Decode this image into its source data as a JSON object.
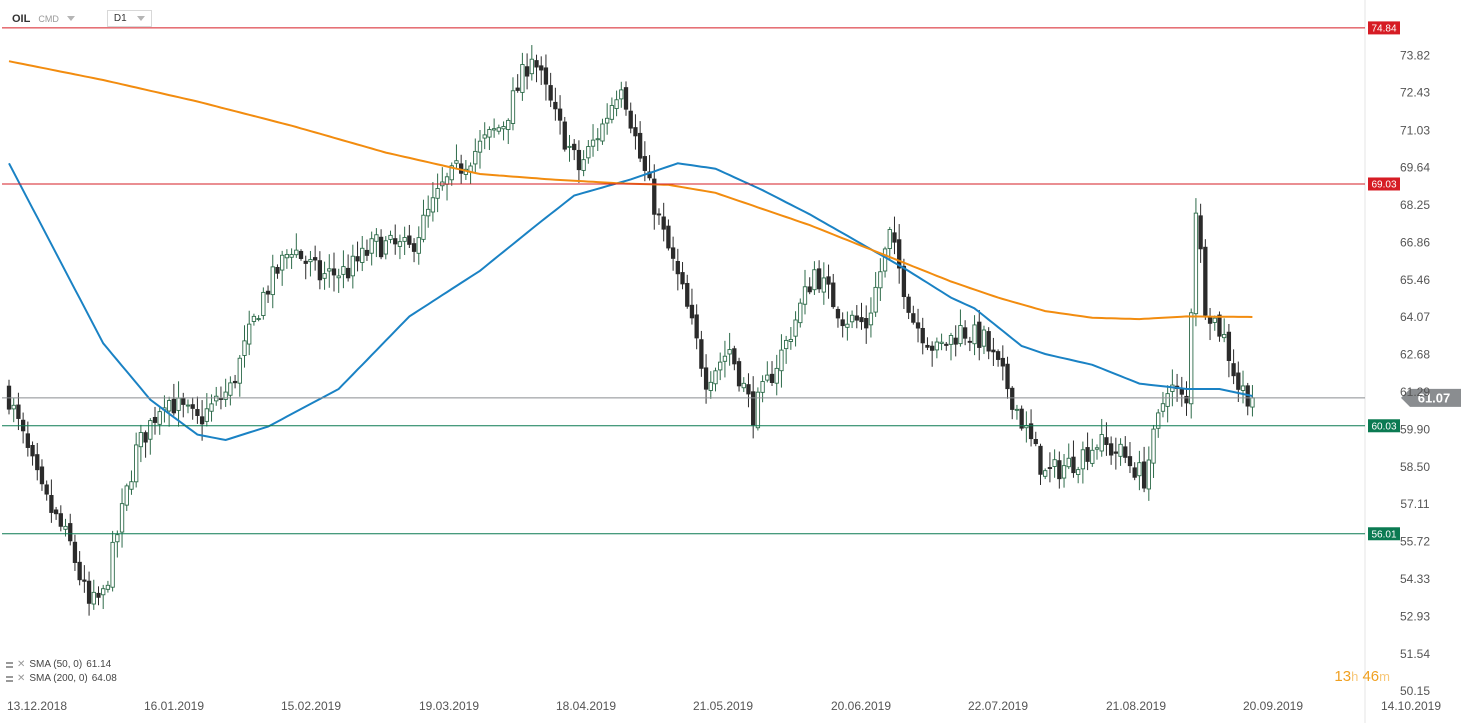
{
  "instrument": {
    "symbol": "OIL",
    "type": "CMD",
    "timeframe": "D1"
  },
  "countdown": {
    "hours": "13",
    "h_unit": "h",
    "minutes": "46",
    "m_unit": "m"
  },
  "colors": {
    "sma50": "#1a82c4",
    "sma200": "#f28c0f",
    "bull": "#2e6b4a",
    "bear": "#2b2b2b",
    "resistance": "#d61c24",
    "support": "#0b7a52",
    "price": "#8a8d90"
  },
  "legend": [
    {
      "label": "SMA (50, 0)",
      "value": "61.14"
    },
    {
      "label": "SMA (200, 0)",
      "value": "64.08"
    }
  ],
  "chart_data": {
    "type": "candlestick",
    "y_axis_ticks": [
      "73.82",
      "72.43",
      "71.03",
      "69.64",
      "68.25",
      "66.86",
      "65.46",
      "64.07",
      "62.68",
      "61.29",
      "59.90",
      "58.50",
      "57.11",
      "55.72",
      "54.33",
      "52.93",
      "51.54",
      "50.15"
    ],
    "x_axis_ticks": [
      "13.12.2018",
      "16.01.2019",
      "15.02.2019",
      "19.03.2019",
      "18.04.2019",
      "21.05.2019",
      "20.06.2019",
      "22.07.2019",
      "21.08.2019",
      "20.09.2019",
      "14.10.2019"
    ],
    "ylim": [
      50.15,
      75.2
    ],
    "horizontal_levels": [
      {
        "label": "74.84",
        "value": 74.84,
        "kind": "resistance"
      },
      {
        "label": "69.03",
        "value": 69.03,
        "kind": "resistance"
      },
      {
        "label": "60.03",
        "value": 60.03,
        "kind": "support"
      },
      {
        "label": "56.01",
        "value": 56.01,
        "kind": "support"
      }
    ],
    "current_price": {
      "label": "61.07",
      "value": 61.07
    },
    "close_anchors": [
      [
        0,
        61.1
      ],
      [
        7,
        57.5
      ],
      [
        13,
        55.6
      ],
      [
        17,
        53.3
      ],
      [
        20,
        53.7
      ],
      [
        27,
        59.1
      ],
      [
        33,
        61.1
      ],
      [
        40,
        60.2
      ],
      [
        47,
        61.4
      ],
      [
        54,
        64.9
      ],
      [
        60,
        66.7
      ],
      [
        66,
        65.6
      ],
      [
        72,
        65.8
      ],
      [
        78,
        66.8
      ],
      [
        85,
        66.6
      ],
      [
        92,
        68.9
      ],
      [
        98,
        70.1
      ],
      [
        105,
        71.3
      ],
      [
        111,
        73.9
      ],
      [
        116,
        71.5
      ],
      [
        121,
        69.6
      ],
      [
        126,
        71.2
      ],
      [
        130,
        72.9
      ],
      [
        134,
        70.0
      ],
      [
        139,
        67.1
      ],
      [
        143,
        65.0
      ],
      [
        148,
        61.8
      ],
      [
        153,
        62.9
      ],
      [
        158,
        60.5
      ],
      [
        165,
        63.1
      ],
      [
        171,
        65.8
      ],
      [
        177,
        64.1
      ],
      [
        182,
        63.8
      ],
      [
        187,
        67.1
      ],
      [
        192,
        64.0
      ],
      [
        197,
        62.8
      ],
      [
        202,
        63.6
      ],
      [
        207,
        63.2
      ],
      [
        212,
        61.5
      ],
      [
        216,
        59.8
      ],
      [
        220,
        58.2
      ],
      [
        226,
        58.7
      ],
      [
        231,
        59.4
      ],
      [
        236,
        59.0
      ],
      [
        241,
        58.1
      ],
      [
        246,
        61.6
      ],
      [
        250,
        60.8
      ],
      [
        252,
        68.2
      ],
      [
        254,
        64.6
      ],
      [
        258,
        63.3
      ],
      [
        261,
        61.5
      ],
      [
        264,
        61.07
      ]
    ],
    "series": [
      {
        "name": "SMA (50, 0)",
        "type": "line",
        "anchors": [
          [
            0,
            69.8
          ],
          [
            20,
            63.1
          ],
          [
            30,
            61.0
          ],
          [
            40,
            59.7
          ],
          [
            46,
            59.5
          ],
          [
            55,
            60.0
          ],
          [
            70,
            61.4
          ],
          [
            85,
            64.1
          ],
          [
            100,
            65.8
          ],
          [
            112,
            67.5
          ],
          [
            120,
            68.6
          ],
          [
            132,
            69.2
          ],
          [
            142,
            69.8
          ],
          [
            150,
            69.6
          ],
          [
            160,
            68.8
          ],
          [
            170,
            67.9
          ],
          [
            180,
            66.9
          ],
          [
            190,
            65.9
          ],
          [
            200,
            64.8
          ],
          [
            205,
            64.4
          ],
          [
            210,
            63.7
          ],
          [
            215,
            63.0
          ],
          [
            220,
            62.7
          ],
          [
            230,
            62.3
          ],
          [
            240,
            61.6
          ],
          [
            250,
            61.4
          ],
          [
            257,
            61.4
          ],
          [
            264,
            61.14
          ]
        ]
      },
      {
        "name": "SMA (200, 0)",
        "type": "line",
        "anchors": [
          [
            0,
            73.6
          ],
          [
            20,
            72.9
          ],
          [
            40,
            72.1
          ],
          [
            60,
            71.2
          ],
          [
            80,
            70.2
          ],
          [
            100,
            69.4
          ],
          [
            115,
            69.2
          ],
          [
            130,
            69.05
          ],
          [
            140,
            69.0
          ],
          [
            150,
            68.7
          ],
          [
            160,
            68.1
          ],
          [
            170,
            67.5
          ],
          [
            180,
            66.8
          ],
          [
            190,
            66.1
          ],
          [
            200,
            65.4
          ],
          [
            210,
            64.8
          ],
          [
            220,
            64.3
          ],
          [
            230,
            64.05
          ],
          [
            240,
            64.0
          ],
          [
            250,
            64.1
          ],
          [
            264,
            64.08
          ]
        ]
      }
    ]
  }
}
